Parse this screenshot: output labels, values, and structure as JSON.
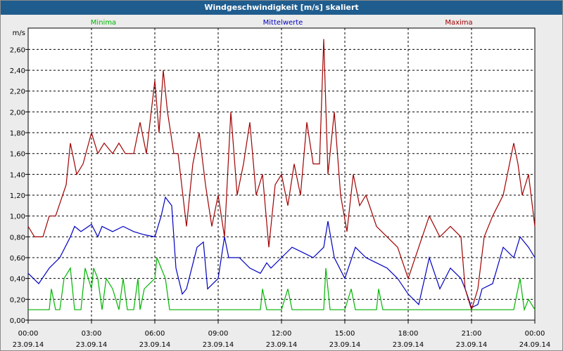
{
  "window": {
    "title": "Windgeschwindigkeit [m/s] skaliert"
  },
  "chart_data": {
    "type": "line",
    "ylabel": "m/s",
    "ylim": [
      0,
      2.8
    ],
    "yticks": [
      "0,00",
      "0,20",
      "0,40",
      "0,60",
      "0,80",
      "1,00",
      "1,20",
      "1,40",
      "1,60",
      "1,80",
      "2,00",
      "2,20",
      "2,40",
      "2,60"
    ],
    "xlim": [
      0,
      24
    ],
    "xticks": [
      {
        "time": "00:00",
        "date": "23.09.14"
      },
      {
        "time": "03:00",
        "date": "23.09.14"
      },
      {
        "time": "06:00",
        "date": "23.09.14"
      },
      {
        "time": "09:00",
        "date": "23.09.14"
      },
      {
        "time": "12:00",
        "date": "23.09.14"
      },
      {
        "time": "15:00",
        "date": "23.09.14"
      },
      {
        "time": "18:00",
        "date": "23.09.14"
      },
      {
        "time": "21:00",
        "date": "23.09.14"
      },
      {
        "time": "00:00",
        "date": "24.09.14"
      }
    ],
    "grid": true,
    "legend_position": "top",
    "series": [
      {
        "name": "Minima",
        "color": "#00b400",
        "x": [
          0,
          1,
          1.1,
          1.3,
          1.5,
          1.7,
          2,
          2.2,
          2.5,
          2.7,
          3,
          3.1,
          3.3,
          3.5,
          3.7,
          4,
          4.3,
          4.5,
          4.7,
          5,
          5.2,
          5.3,
          5.5,
          6,
          6.1,
          6.3,
          6.5,
          6.7,
          7,
          7.5,
          8,
          8.5,
          9,
          9.5,
          10,
          10.5,
          11,
          11.1,
          11.3,
          12,
          12.3,
          12.5,
          13,
          13.5,
          14,
          14.1,
          14.3,
          15,
          15.3,
          15.5,
          16,
          16.5,
          16.6,
          16.8,
          17,
          18,
          18.5,
          19,
          19.5,
          20,
          20.5,
          21,
          21.5,
          22,
          22.5,
          23,
          23.3,
          23.5,
          23.7,
          24
        ],
        "y": [
          0.1,
          0.1,
          0.3,
          0.1,
          0.1,
          0.4,
          0.5,
          0.1,
          0.1,
          0.5,
          0.3,
          0.5,
          0.4,
          0.1,
          0.4,
          0.3,
          0.1,
          0.4,
          0.1,
          0.1,
          0.4,
          0.1,
          0.3,
          0.4,
          0.6,
          0.5,
          0.4,
          0.1,
          0.1,
          0.1,
          0.1,
          0.1,
          0.1,
          0.1,
          0.1,
          0.1,
          0.1,
          0.3,
          0.1,
          0.1,
          0.3,
          0.1,
          0.1,
          0.1,
          0.1,
          0.5,
          0.1,
          0.1,
          0.3,
          0.1,
          0.1,
          0.1,
          0.3,
          0.1,
          0.1,
          0.1,
          0.1,
          0.1,
          0.1,
          0.1,
          0.1,
          0.1,
          0.1,
          0.1,
          0.1,
          0.1,
          0.4,
          0.1,
          0.2,
          0.1
        ]
      },
      {
        "name": "Mittelwerte",
        "color": "#0000c0",
        "x": [
          0,
          0.5,
          1,
          1.5,
          2,
          2.2,
          2.5,
          3,
          3.3,
          3.5,
          4,
          4.5,
          5,
          5.5,
          6,
          6.3,
          6.5,
          6.8,
          7,
          7.3,
          7.5,
          8,
          8.3,
          8.5,
          9,
          9.3,
          9.5,
          10,
          10.5,
          11,
          11.3,
          11.5,
          12,
          12.5,
          13,
          13.5,
          14,
          14.2,
          14.5,
          15,
          15.5,
          16,
          16.5,
          17,
          17.5,
          18,
          18.5,
          19,
          19.5,
          20,
          20.5,
          20.7,
          21,
          21.3,
          21.5,
          22,
          22.5,
          23,
          23.3,
          23.7,
          24
        ],
        "y": [
          0.45,
          0.35,
          0.5,
          0.6,
          0.8,
          0.9,
          0.85,
          0.92,
          0.8,
          0.9,
          0.85,
          0.9,
          0.85,
          0.82,
          0.8,
          1.0,
          1.18,
          1.1,
          0.5,
          0.25,
          0.3,
          0.7,
          0.75,
          0.3,
          0.4,
          0.8,
          0.6,
          0.6,
          0.5,
          0.45,
          0.55,
          0.5,
          0.6,
          0.7,
          0.65,
          0.6,
          0.7,
          0.95,
          0.6,
          0.4,
          0.7,
          0.6,
          0.55,
          0.5,
          0.4,
          0.25,
          0.15,
          0.6,
          0.3,
          0.5,
          0.4,
          0.3,
          0.12,
          0.15,
          0.3,
          0.35,
          0.7,
          0.6,
          0.8,
          0.7,
          0.6
        ]
      },
      {
        "name": "Maxima",
        "color": "#a00000",
        "x": [
          0,
          0.3,
          0.7,
          1,
          1.3,
          1.8,
          2,
          2.3,
          2.6,
          3,
          3.3,
          3.6,
          4,
          4.3,
          4.6,
          5,
          5.3,
          5.6,
          6,
          6.2,
          6.4,
          6.6,
          6.9,
          7.1,
          7.5,
          7.8,
          8.1,
          8.4,
          8.7,
          9,
          9.3,
          9.6,
          9.9,
          10.2,
          10.5,
          10.8,
          11.1,
          11.4,
          11.7,
          12,
          12.3,
          12.6,
          12.9,
          13.2,
          13.5,
          13.8,
          14,
          14.2,
          14.5,
          14.8,
          15.1,
          15.4,
          15.7,
          16,
          16.5,
          17,
          17.5,
          18,
          18.5,
          19,
          19.5,
          20,
          20.5,
          20.7,
          21,
          21.3,
          21.6,
          22,
          22.5,
          23,
          23.2,
          23.4,
          23.7,
          24
        ],
        "y": [
          0.9,
          0.8,
          0.8,
          1.0,
          1.0,
          1.3,
          1.7,
          1.4,
          1.5,
          1.8,
          1.6,
          1.7,
          1.6,
          1.7,
          1.6,
          1.6,
          1.9,
          1.6,
          2.3,
          1.8,
          2.4,
          2.0,
          1.6,
          1.6,
          0.9,
          1.5,
          1.8,
          1.3,
          0.9,
          1.2,
          0.8,
          2.0,
          1.2,
          1.5,
          1.9,
          1.2,
          1.4,
          0.7,
          1.3,
          1.4,
          1.1,
          1.5,
          1.2,
          1.9,
          1.5,
          1.5,
          2.7,
          1.4,
          2.0,
          1.2,
          0.85,
          1.4,
          1.1,
          1.2,
          0.9,
          0.8,
          0.7,
          0.4,
          0.7,
          1.0,
          0.8,
          0.9,
          0.8,
          0.3,
          0.1,
          0.3,
          0.8,
          1.0,
          1.2,
          1.7,
          1.5,
          1.2,
          1.4,
          0.9
        ]
      }
    ]
  }
}
